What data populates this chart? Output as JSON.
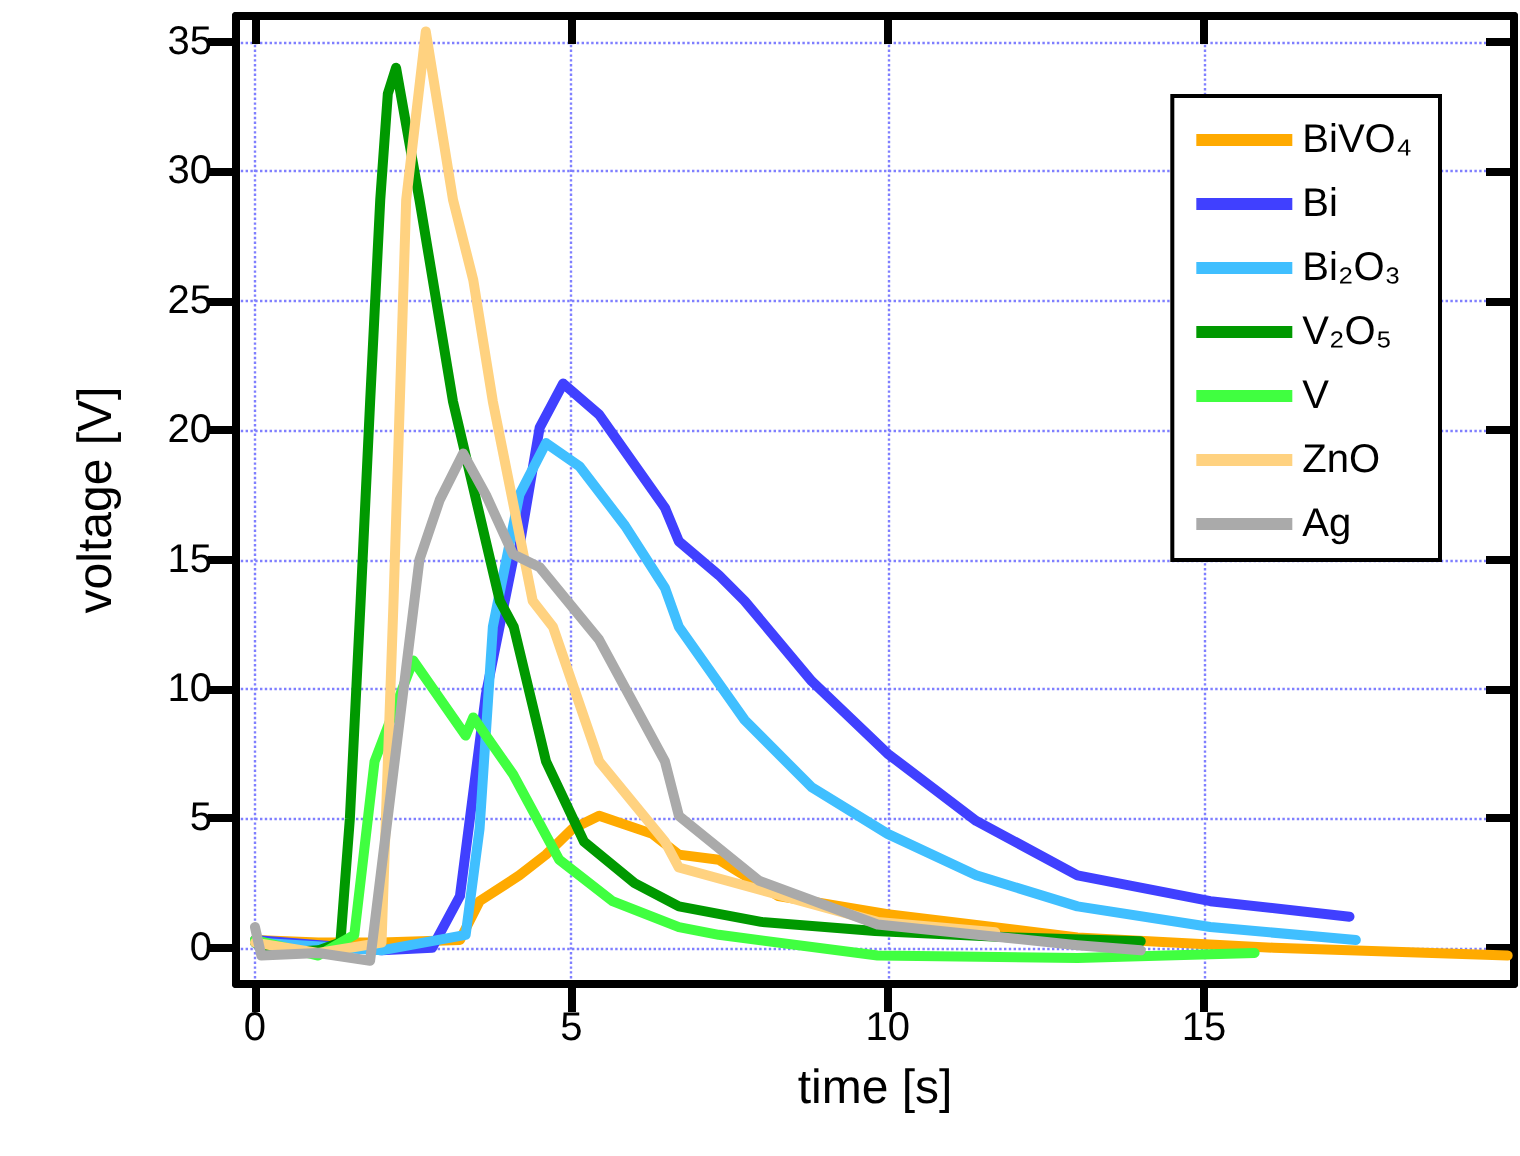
{
  "chart_data": {
    "type": "line",
    "xlabel": "time [s]",
    "ylabel": "voltage [V]",
    "xlim": [
      -0.3,
      19.9
    ],
    "ylim": [
      -1.4,
      36
    ],
    "xticks": [
      0,
      5,
      10,
      15
    ],
    "yticks": [
      0,
      5,
      10,
      15,
      20,
      25,
      30,
      35
    ],
    "grid": true,
    "legend": "top right",
    "marker": "none",
    "line_style": "solid",
    "series": [
      {
        "name": "BiVO₄",
        "color": "#ffaa00",
        "x": [
          0,
          1,
          2,
          3.24,
          3.55,
          4.18,
          4.6,
          5.02,
          5.44,
          6.28,
          6.7,
          7.33,
          8.27,
          10,
          13,
          16.1,
          19.8
        ],
        "values": [
          0.3,
          0.2,
          0.2,
          0.3,
          1.8,
          2.8,
          3.6,
          4.6,
          5.1,
          4.4,
          3.6,
          3.4,
          2.0,
          1.3,
          0.4,
          0.0,
          -0.3
        ]
      },
      {
        "name": "Bi",
        "color": "#4040ff",
        "x": [
          0,
          2,
          2.8,
          3.24,
          3.65,
          4.08,
          4.18,
          4.5,
          4.87,
          5.44,
          6.48,
          6.7,
          7.33,
          7.74,
          8.8,
          10,
          11.4,
          13,
          15.1,
          17.3
        ],
        "values": [
          0.3,
          -0.1,
          0,
          2,
          9.8,
          15,
          15.5,
          20.1,
          21.8,
          20.6,
          17,
          15.7,
          14.4,
          13.4,
          10.3,
          7.5,
          4.9,
          2.8,
          1.8,
          1.2
        ]
      },
      {
        "name": "Bi₂O₃",
        "color": "#40bfff",
        "x": [
          0,
          2,
          3.33,
          3.55,
          3.76,
          4.18,
          4.6,
          5.13,
          5.85,
          6.48,
          6.7,
          7.74,
          8.8,
          10,
          11.4,
          13,
          15.1,
          17.4
        ],
        "values": [
          0.2,
          -0.1,
          0.5,
          4.6,
          12.4,
          17.5,
          19.5,
          18.6,
          16.3,
          13.9,
          12.4,
          8.8,
          6.2,
          4.4,
          2.8,
          1.6,
          0.8,
          0.3
        ]
      },
      {
        "name": "V₂O₅",
        "color": "#009900",
        "x": [
          0,
          0.3,
          1,
          1.35,
          1.5,
          1.67,
          1.82,
          1.98,
          2.1,
          2.23,
          2.6,
          3.13,
          3.87,
          4.09,
          4.6,
          5.2,
          6,
          6.7,
          8,
          9.8,
          12,
          14
        ],
        "values": [
          0.2,
          -0.2,
          -0.1,
          0.2,
          5,
          13.4,
          21.1,
          28.9,
          33,
          34,
          28.9,
          21.1,
          13.4,
          12.4,
          7.2,
          4.1,
          2.5,
          1.6,
          1,
          0.65,
          0.4,
          0.25
        ]
      },
      {
        "name": "V",
        "color": "#40ff40",
        "x": [
          0,
          1,
          1.57,
          1.89,
          2.5,
          3.33,
          3.45,
          4.08,
          4.81,
          5.65,
          6.7,
          7.33,
          9.84,
          13,
          15.8
        ],
        "values": [
          0.3,
          -0.3,
          0.5,
          7.2,
          11.1,
          8.2,
          8.9,
          6.7,
          3.4,
          1.8,
          0.8,
          0.5,
          -0.3,
          -0.4,
          -0.2
        ]
      },
      {
        "name": "ZnO",
        "color": "#ffd280",
        "x": [
          0,
          1,
          2,
          2.19,
          2.39,
          2.7,
          3.13,
          3.45,
          3.76,
          4.39,
          4.71,
          5.44,
          6.48,
          6.7,
          9.84,
          11.7
        ],
        "values": [
          0.2,
          -0.2,
          0.2,
          13.4,
          28.9,
          35.4,
          28.9,
          25.8,
          21.1,
          13.4,
          12.4,
          7.2,
          4.1,
          3.1,
          1.0,
          0.6
        ]
      },
      {
        "name": "Ag",
        "color": "#aaaaaa",
        "x": [
          0,
          0.1,
          1,
          1.82,
          2.6,
          2.92,
          3.29,
          3.65,
          4.08,
          4.5,
          5.44,
          6.48,
          6.7,
          7.96,
          9.84,
          13,
          14
        ],
        "values": [
          0.8,
          -0.3,
          -0.2,
          -0.5,
          15,
          17.3,
          19.1,
          17.5,
          15.2,
          14.7,
          11.9,
          7.2,
          5.1,
          2.6,
          0.9,
          0.1,
          -0.1
        ]
      }
    ]
  }
}
